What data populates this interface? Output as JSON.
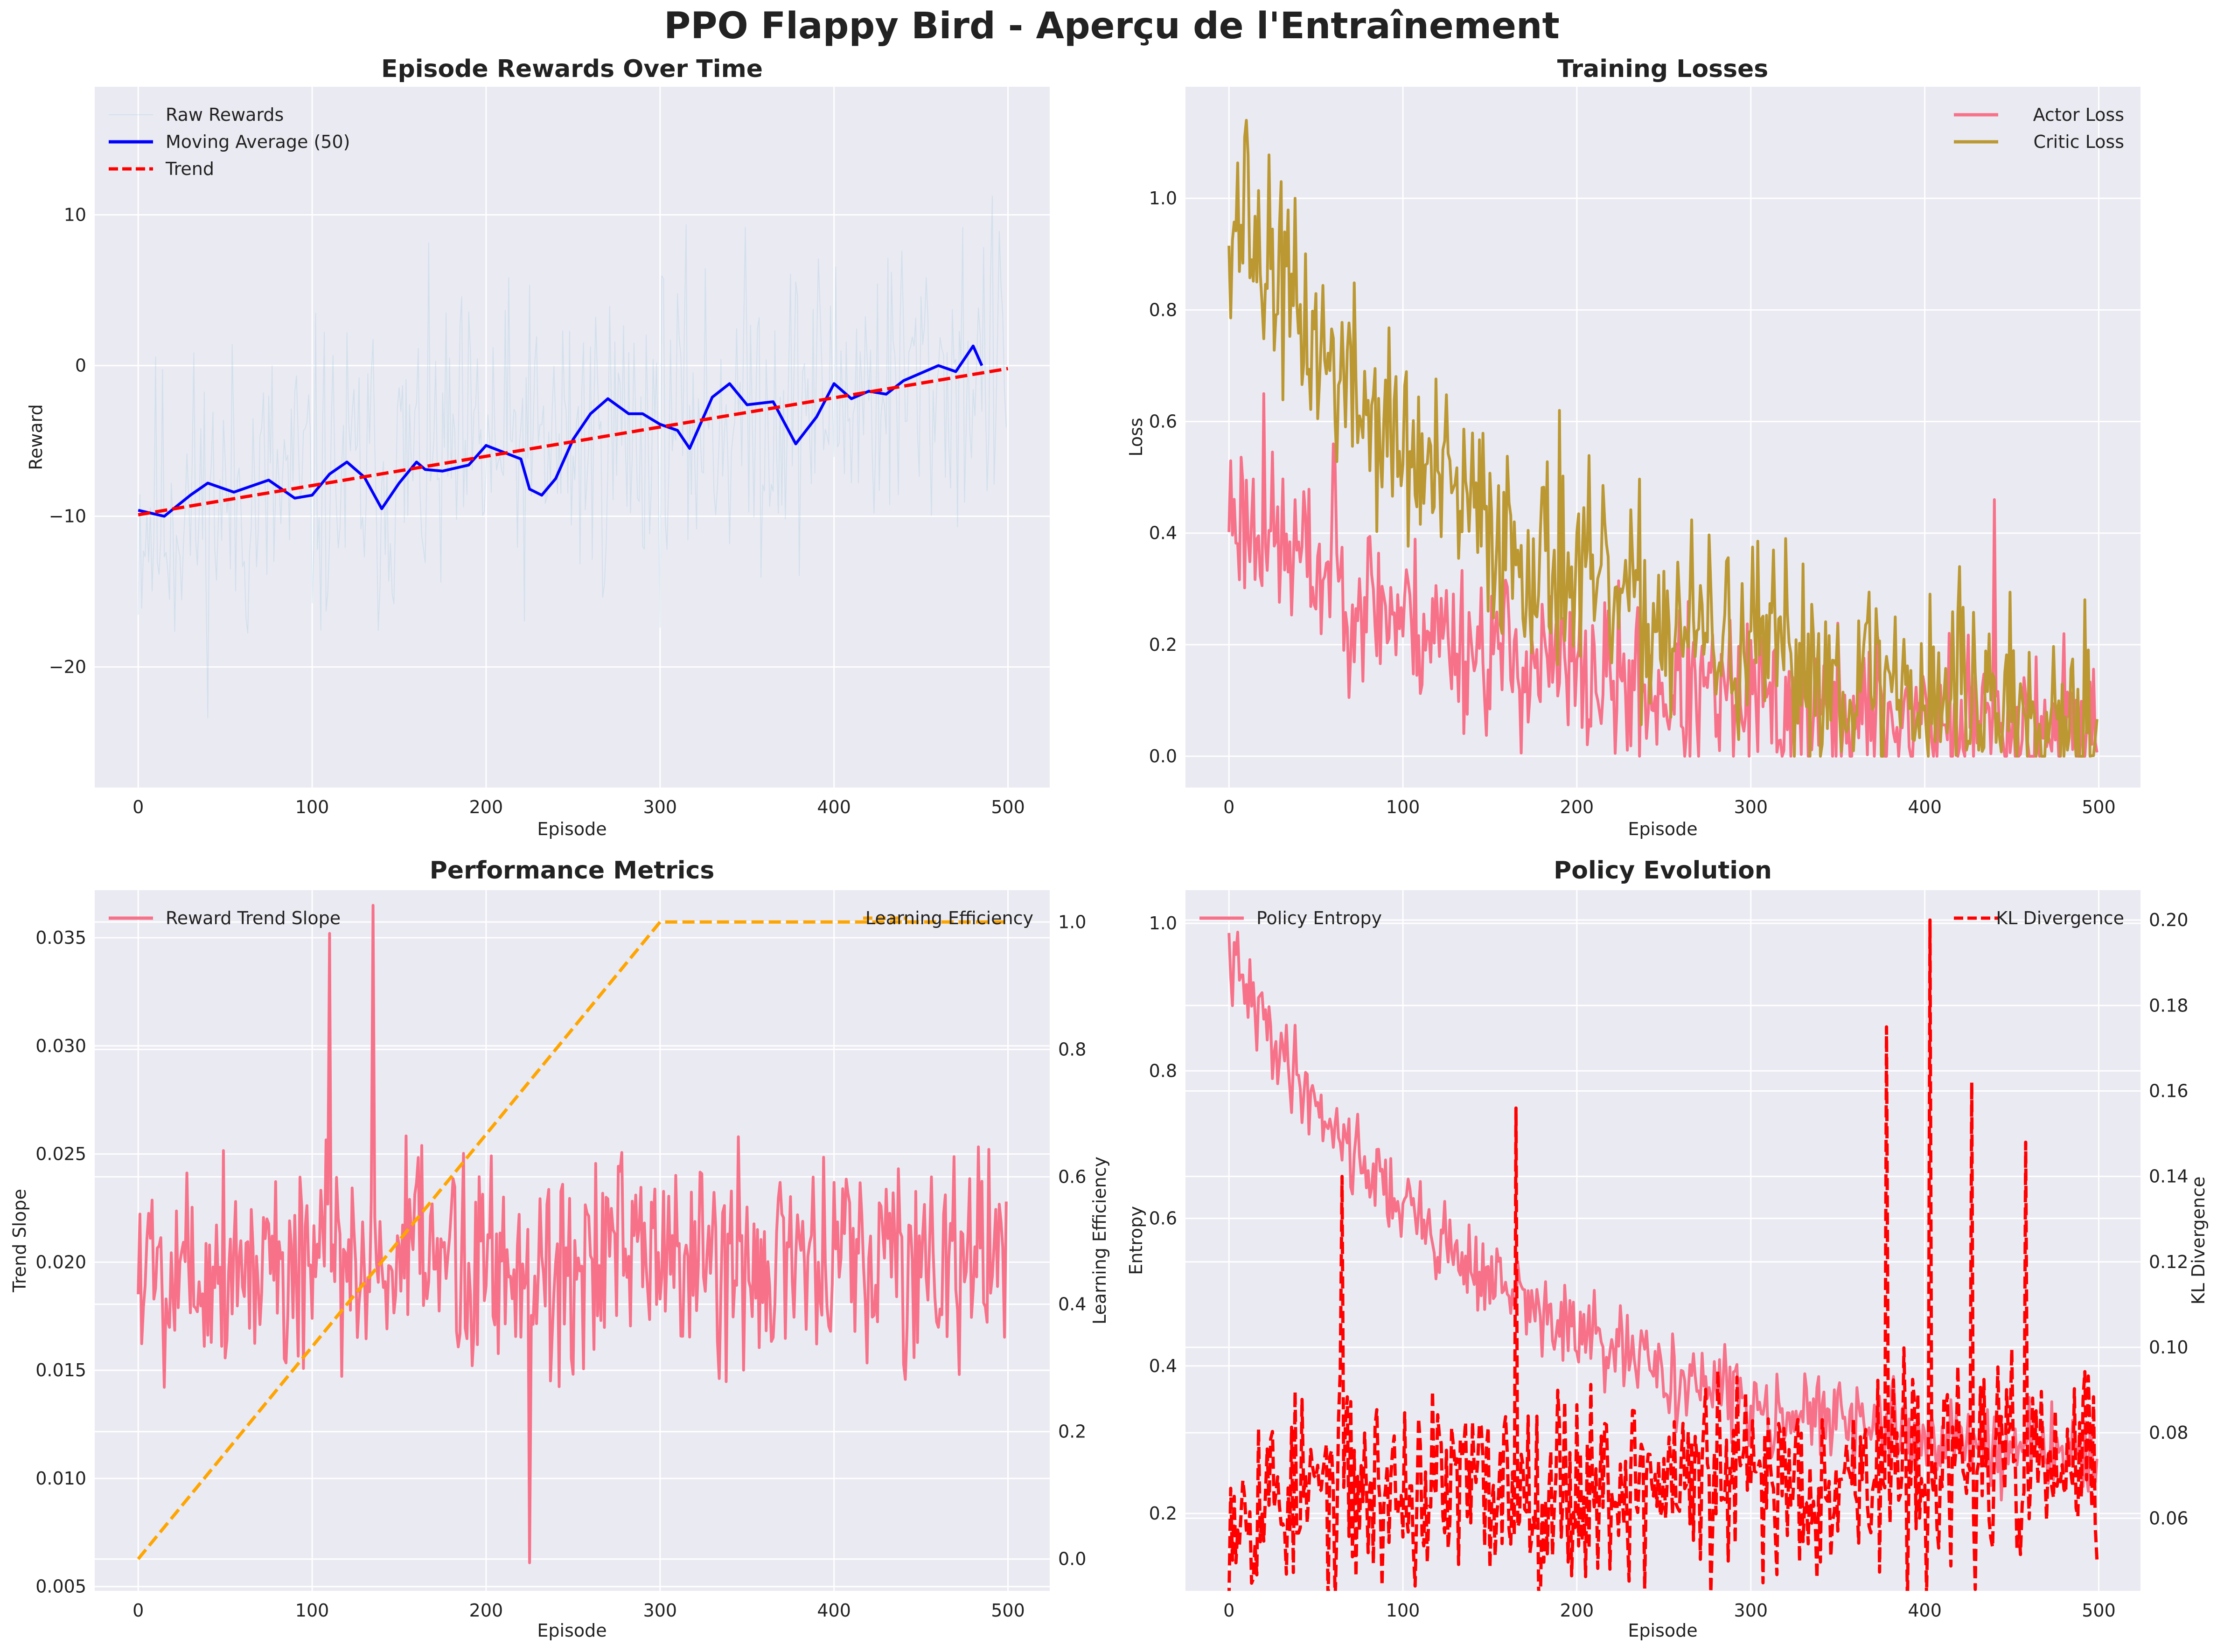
{
  "figure": {
    "title": "PPO Flappy Bird - Aperçu de l'Entraînement"
  },
  "colors": {
    "plot_bg": "#EAEAF2",
    "grid": "#FFFFFF",
    "raw": "#A6CEE3",
    "moving_avg": "#0000FF",
    "trend": "#FF0000",
    "actor": "#F77189",
    "critic": "#BB9832",
    "efficiency": "#FFA500",
    "kl": "#FF0000"
  },
  "chart_data": [
    {
      "type": "line",
      "title": "Episode Rewards Over Time",
      "xlabel": "Episode",
      "ylabel": "Reward",
      "xlim": [
        -25,
        524
      ],
      "ylim": [
        -28,
        18.5
      ],
      "xticks": [
        0,
        100,
        200,
        300,
        400,
        500
      ],
      "yticks": [
        -20,
        -10,
        0,
        10
      ],
      "yticklabels": [
        "−20",
        "−10",
        "0",
        "10"
      ],
      "grid": true,
      "legend_position": "upper left",
      "series": [
        {
          "name": "Raw Rewards",
          "style": "thin-line",
          "color": "#A6CEE3",
          "x": [
            0,
            499
          ],
          "x_step": 1,
          "mean_from": -10,
          "mean_to": 0,
          "spread": 9,
          "seed": 11
        },
        {
          "name": "Moving Average (50)",
          "style": "line",
          "color": "#0000FF",
          "x": [
            0,
            15,
            30,
            40,
            55,
            75,
            90,
            100,
            110,
            120,
            130,
            140,
            150,
            160,
            165,
            175,
            190,
            200,
            220,
            225,
            232,
            240,
            250,
            260,
            270,
            282,
            290,
            300,
            310,
            317,
            330,
            340,
            350,
            365,
            378,
            390,
            400,
            410,
            420,
            430,
            440,
            450,
            460,
            470,
            480,
            485
          ],
          "y": [
            -9.6,
            -10.0,
            -8.6,
            -7.8,
            -8.4,
            -7.6,
            -8.8,
            -8.6,
            -7.2,
            -6.4,
            -7.4,
            -9.5,
            -7.8,
            -6.4,
            -6.9,
            -7.0,
            -6.6,
            -5.3,
            -6.2,
            -8.2,
            -8.6,
            -7.5,
            -4.9,
            -3.2,
            -2.2,
            -3.2,
            -3.2,
            -3.9,
            -4.3,
            -5.5,
            -2.1,
            -1.2,
            -2.6,
            -2.4,
            -5.2,
            -3.4,
            -1.2,
            -2.2,
            -1.7,
            -1.9,
            -1.0,
            -0.5,
            0.0,
            -0.4,
            1.3,
            0.0
          ]
        },
        {
          "name": "Trend",
          "style": "dashed",
          "color": "#FF0000",
          "x": [
            0,
            500
          ],
          "y": [
            -9.9,
            -0.2
          ]
        }
      ]
    },
    {
      "type": "line",
      "title": "Training Losses",
      "xlabel": "Episode",
      "ylabel": "Loss",
      "xlim": [
        -25,
        524
      ],
      "ylim": [
        -0.056,
        1.2
      ],
      "xticks": [
        0,
        100,
        200,
        300,
        400,
        500
      ],
      "yticks": [
        0.0,
        0.2,
        0.4,
        0.6,
        0.8,
        1.0
      ],
      "yticklabels": [
        "0.0",
        "0.2",
        "0.4",
        "0.6",
        "0.8",
        "1.0"
      ],
      "grid": true,
      "legend_position": "upper right",
      "series": [
        {
          "name": "Actor Loss",
          "style": "line",
          "color": "#F77189",
          "x": [
            0,
            499
          ],
          "x_step": 1,
          "decay_from": 0.45,
          "decay_to": 0.03,
          "spread": 0.13,
          "seed": 23,
          "peaks": [
            [
              20,
              0.65
            ],
            [
              60,
              0.56
            ],
            [
              440,
              0.46
            ]
          ]
        },
        {
          "name": "Critic Loss",
          "style": "line",
          "color": "#BB9832",
          "x": [
            0,
            499
          ],
          "x_step": 1,
          "decay_from": 1.0,
          "decay_to": 0.05,
          "spread": 0.16,
          "seed": 37,
          "peaks": [
            [
              10,
              1.14
            ],
            [
              30,
              1.03
            ],
            [
              190,
              0.62
            ],
            [
              420,
              0.34
            ]
          ]
        }
      ]
    },
    {
      "type": "line",
      "title": "Performance Metrics",
      "xlabel": "Episode",
      "ylabel": "Trend Slope",
      "y2label": "Learning Efficiency",
      "xlim": [
        -25,
        524
      ],
      "ylim": [
        0.0048,
        0.0372
      ],
      "y2lim": [
        -0.05,
        1.05
      ],
      "xticks": [
        0,
        100,
        200,
        300,
        400,
        500
      ],
      "yticks": [
        0.005,
        0.01,
        0.015,
        0.02,
        0.025,
        0.03,
        0.035
      ],
      "yticklabels": [
        "0.005",
        "0.010",
        "0.015",
        "0.020",
        "0.025",
        "0.030",
        "0.035"
      ],
      "y2ticks": [
        0.0,
        0.2,
        0.4,
        0.6,
        0.8,
        1.0
      ],
      "y2ticklabels": [
        "0.0",
        "0.2",
        "0.4",
        "0.6",
        "0.8",
        "1.0"
      ],
      "grid": true,
      "legend_position": "upper left / upper right",
      "series": [
        {
          "name": "Reward Trend Slope",
          "style": "line",
          "color": "#F77189",
          "axis": "left",
          "x": [
            0,
            499
          ],
          "x_step": 1,
          "mean_from": 0.02,
          "mean_to": 0.02,
          "spread": 0.0045,
          "seed": 5,
          "peaks": [
            [
              135,
              0.0365
            ],
            [
              110,
              0.0352
            ],
            [
              225,
              0.0061
            ]
          ]
        },
        {
          "name": "Learning Efficiency",
          "style": "dashed",
          "color": "#FFA500",
          "axis": "right",
          "x": [
            0,
            300,
            500
          ],
          "y": [
            0.0,
            1.0,
            1.0
          ]
        }
      ]
    },
    {
      "type": "line",
      "title": "Policy Evolution",
      "xlabel": "Episode",
      "ylabel": "Entropy",
      "y2label": "KL Divergence",
      "xlim": [
        -25,
        524
      ],
      "ylim": [
        0.095,
        1.045
      ],
      "y2lim": [
        0.043,
        0.207
      ],
      "xticks": [
        0,
        100,
        200,
        300,
        400,
        500
      ],
      "yticks": [
        0.2,
        0.4,
        0.6,
        0.8,
        1.0
      ],
      "yticklabels": [
        "0.2",
        "0.4",
        "0.6",
        "0.8",
        "1.0"
      ],
      "y2ticks": [
        0.06,
        0.08,
        0.1,
        0.12,
        0.14,
        0.16,
        0.18,
        0.2
      ],
      "y2ticklabels": [
        "0.06",
        "0.08",
        "0.10",
        "0.12",
        "0.14",
        "0.16",
        "0.18",
        "0.20"
      ],
      "grid": true,
      "legend_position": "upper left / upper right",
      "series": [
        {
          "name": "Policy Entropy",
          "style": "line",
          "color": "#F77189",
          "axis": "left",
          "x": [
            0,
            499
          ],
          "x_step": 1,
          "decay_from": 0.95,
          "decay_to": 0.25,
          "spread": 0.05,
          "seed": 41
        },
        {
          "name": "KL Divergence",
          "style": "dashed",
          "color": "#FF0000",
          "axis": "right",
          "x": [
            0,
            499
          ],
          "x_step": 1,
          "mean_from": 0.065,
          "mean_to": 0.072,
          "spread": 0.02,
          "seed": 53,
          "peaks": [
            [
              65,
              0.14
            ],
            [
              165,
              0.156
            ],
            [
              378,
              0.175
            ],
            [
              403,
              0.2
            ],
            [
              427,
              0.162
            ],
            [
              458,
              0.148
            ]
          ]
        }
      ]
    }
  ]
}
